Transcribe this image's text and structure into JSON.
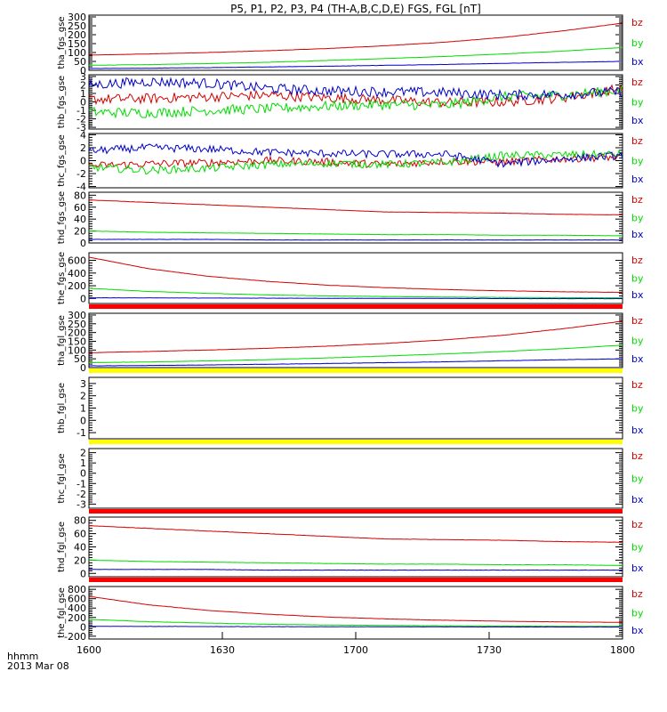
{
  "chart_data": {
    "type": "line",
    "title": "P5, P1, P2, P3, P4 (TH-A,B,C,D,E) FGS, FGL [nT]",
    "x_axis": {
      "label_line1": "hhmm",
      "label_line2": "2013 Mar 08",
      "ticks": [
        "1600",
        "1630",
        "1700",
        "1730",
        "1800"
      ]
    },
    "series_colors": {
      "bz": "#d40000",
      "by": "#00dd00",
      "bx": "#0000cc"
    },
    "panels": [
      {
        "ylabel": "tha_fgs_gse",
        "ticks": [
          0,
          50,
          100,
          150,
          200,
          250,
          300
        ],
        "ylim": [
          0,
          310
        ],
        "series": [
          {
            "name": "bz",
            "values": [
              85,
              92,
              100,
              110,
              122,
              138,
              158,
              185,
              222,
              265
            ]
          },
          {
            "name": "by",
            "values": [
              28,
              32,
              38,
              45,
              55,
              66,
              78,
              92,
              108,
              128
            ]
          },
          {
            "name": "bx",
            "values": [
              10,
              12,
              15,
              19,
              23,
              28,
              33,
              39,
              45,
              50
            ]
          }
        ],
        "status_bar": ""
      },
      {
        "ylabel": "thb_fgs_gse",
        "ticks": [
          -3,
          -2,
          -1,
          0,
          1,
          2,
          3
        ],
        "ylim": [
          -3.2,
          3.2
        ],
        "series": [
          {
            "name": "bz",
            "values": [
              0.3,
              0.4,
              0.6,
              0.8,
              0.5,
              0.2,
              -0.1,
              0.0,
              0.5,
              1.6
            ]
          },
          {
            "name": "by",
            "values": [
              -1.2,
              -1.3,
              -1.0,
              -0.8,
              -0.5,
              -0.3,
              -0.4,
              0.6,
              0.8,
              1.4
            ]
          },
          {
            "name": "bx",
            "values": [
              2.0,
              2.4,
              2.2,
              1.6,
              1.3,
              1.2,
              1.1,
              0.8,
              0.9,
              1.2
            ]
          }
        ],
        "status_bar": ""
      },
      {
        "ylabel": "thc_fgs_gse",
        "ticks": [
          -4,
          -2,
          0,
          2,
          4
        ],
        "ylim": [
          -4.2,
          4.2
        ],
        "series": [
          {
            "name": "bz",
            "values": [
              -0.8,
              -0.5,
              -0.3,
              0.0,
              -0.2,
              -0.6,
              -0.1,
              -0.2,
              0.3,
              0.6
            ]
          },
          {
            "name": "by",
            "values": [
              -1.0,
              -1.5,
              -1.2,
              -0.6,
              -0.4,
              -0.6,
              -0.3,
              0.8,
              0.9,
              1.0
            ]
          },
          {
            "name": "bx",
            "values": [
              1.5,
              2.0,
              1.8,
              1.3,
              1.1,
              1.0,
              1.0,
              -0.5,
              0.3,
              0.8
            ]
          }
        ],
        "status_bar": ""
      },
      {
        "ylabel": "thd_fgs_gse",
        "ticks": [
          0,
          20,
          40,
          60,
          80
        ],
        "ylim": [
          0,
          85
        ],
        "series": [
          {
            "name": "bz",
            "values": [
              72,
              68,
              64,
              60,
              56,
              52,
              51,
              50,
              48,
              47
            ]
          },
          {
            "name": "by",
            "values": [
              20,
              18,
              17,
              16,
              15,
              14,
              14,
              13,
              13,
              12
            ]
          },
          {
            "name": "bx",
            "values": [
              6,
              6,
              6,
              5,
              5,
              5,
              5,
              5,
              5,
              5
            ]
          }
        ],
        "status_bar": ""
      },
      {
        "ylabel": "the_fgs_gse",
        "ticks": [
          0,
          200,
          400,
          600
        ],
        "ylim": [
          -80,
          720
        ],
        "series": [
          {
            "name": "bz",
            "values": [
              650,
              470,
              350,
              270,
              210,
              170,
              140,
              120,
              105,
              95
            ]
          },
          {
            "name": "by",
            "values": [
              160,
              110,
              80,
              55,
              40,
              30,
              22,
              16,
              12,
              10
            ]
          },
          {
            "name": "bx",
            "values": [
              10,
              8,
              6,
              4,
              2,
              1,
              0,
              -2,
              -3,
              -4
            ]
          }
        ],
        "status_bar": "#ff0000"
      },
      {
        "ylabel": "tha_fgl_gse",
        "ticks": [
          0,
          50,
          100,
          150,
          200,
          250,
          300
        ],
        "ylim": [
          0,
          310
        ],
        "series": [
          {
            "name": "bz",
            "values": [
              85,
              92,
              100,
              110,
              122,
              138,
              158,
              185,
              222,
              265
            ]
          },
          {
            "name": "by",
            "values": [
              28,
              32,
              38,
              45,
              55,
              66,
              78,
              92,
              108,
              128
            ]
          },
          {
            "name": "bx",
            "values": [
              10,
              12,
              15,
              19,
              23,
              28,
              33,
              39,
              45,
              50
            ]
          }
        ],
        "status_bar": "#ffff00"
      },
      {
        "ylabel": "thb_fgl_gse",
        "ticks": [
          -1,
          0,
          1,
          2,
          3
        ],
        "ylim": [
          -1.5,
          3.5
        ],
        "series": [],
        "status_bar": "#ffff00"
      },
      {
        "ylabel": "thc_fgl_gse",
        "ticks": [
          -3,
          -2,
          -1,
          0,
          1,
          2
        ],
        "ylim": [
          -3.4,
          2.4
        ],
        "series": [],
        "status_bar": "#ff0000"
      },
      {
        "ylabel": "thd_fgl_gse",
        "ticks": [
          0,
          20,
          40,
          60,
          80
        ],
        "ylim": [
          -5,
          85
        ],
        "series": [
          {
            "name": "bz",
            "values": [
              72,
              68,
              64,
              60,
              56,
              52,
              51,
              50,
              48,
              47
            ]
          },
          {
            "name": "by",
            "values": [
              20,
              18,
              17,
              16,
              15,
              14,
              14,
              13,
              13,
              12
            ]
          },
          {
            "name": "bx",
            "values": [
              6,
              6,
              6,
              5,
              5,
              5,
              5,
              5,
              5,
              5
            ]
          }
        ],
        "status_bar": "#ff0000"
      },
      {
        "ylabel": "the_fgl_gse",
        "ticks": [
          -200,
          0,
          200,
          400,
          600,
          800
        ],
        "ylim": [
          -260,
          860
        ],
        "series": [
          {
            "name": "bz",
            "values": [
              650,
              470,
              350,
              270,
              210,
              170,
              140,
              120,
              105,
              95
            ]
          },
          {
            "name": "by",
            "values": [
              160,
              110,
              80,
              55,
              40,
              30,
              22,
              16,
              12,
              10
            ]
          },
          {
            "name": "bx",
            "values": [
              10,
              8,
              6,
              4,
              2,
              1,
              0,
              -2,
              -3,
              -4
            ]
          }
        ],
        "status_bar": ""
      }
    ]
  }
}
